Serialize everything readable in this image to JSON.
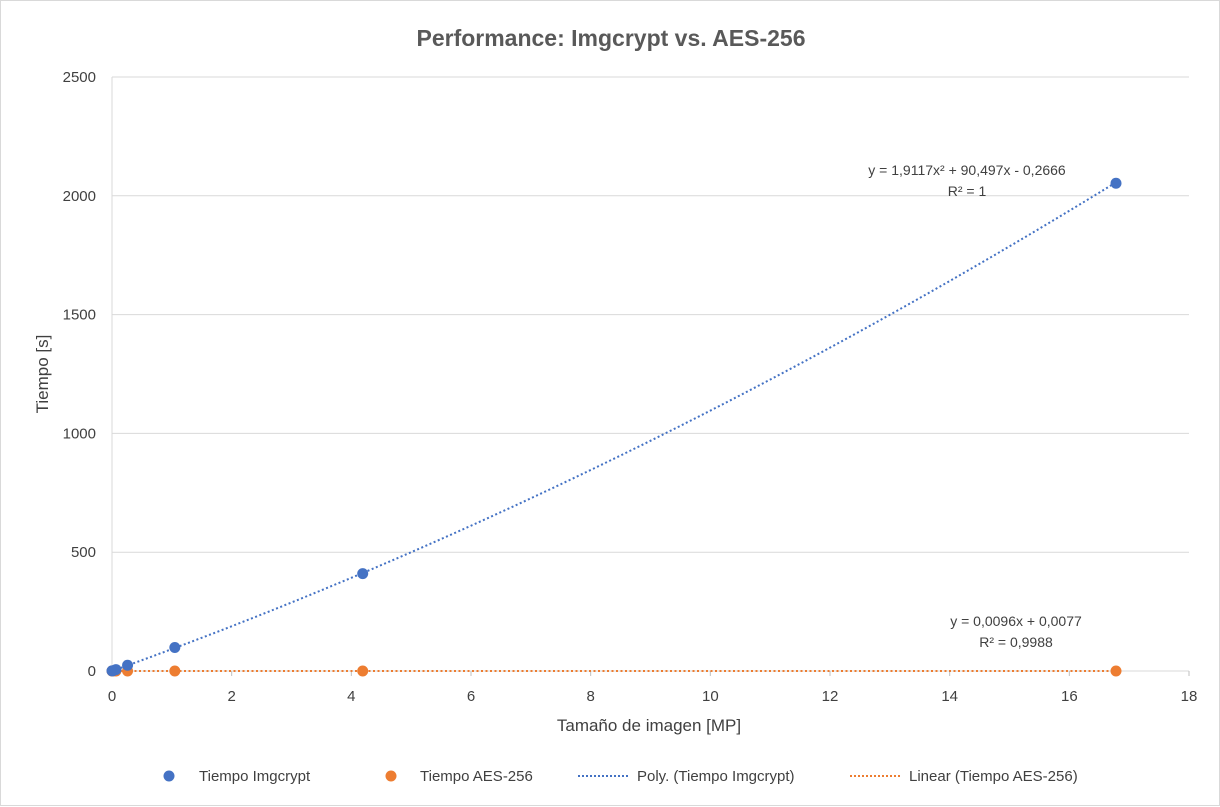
{
  "chart_data": {
    "type": "scatter",
    "title": "Performance: Imgcrypt vs. AES-256",
    "xlabel": "Tamaño de imagen [MP]",
    "ylabel": "Tiempo [s]",
    "xlim": [
      0,
      18
    ],
    "ylim": [
      0,
      2500
    ],
    "x_ticks": [
      0,
      2,
      4,
      6,
      8,
      10,
      12,
      14,
      16,
      18
    ],
    "y_ticks": [
      0,
      500,
      1000,
      1500,
      2000,
      2500
    ],
    "x_tick_labels": [
      "0",
      "2",
      "4",
      "6",
      "8",
      "10",
      "12",
      "14",
      "16",
      "18"
    ],
    "y_tick_labels": [
      "0",
      "500",
      "1000",
      "1500",
      "2000",
      "2500"
    ],
    "grid": "horizontal",
    "legend_position": "bottom",
    "series": [
      {
        "name": "Tiempo Imgcrypt",
        "color": "#4472C4",
        "points": [
          [
            0.0,
            0.5
          ],
          [
            0.016,
            1.2
          ],
          [
            0.066,
            6
          ],
          [
            0.26,
            24
          ],
          [
            1.05,
            99
          ],
          [
            4.19,
            410
          ],
          [
            16.78,
            2053
          ]
        ]
      },
      {
        "name": "Tiempo AES-256",
        "color": "#ED7D31",
        "points": [
          [
            0.0,
            0.01
          ],
          [
            0.016,
            0.02
          ],
          [
            0.066,
            0.01
          ],
          [
            0.26,
            0.01
          ],
          [
            1.05,
            0.02
          ],
          [
            4.19,
            0.05
          ],
          [
            16.78,
            0.17
          ]
        ]
      }
    ],
    "trendlines": [
      {
        "name": "Poly. (Tiempo Imgcrypt)",
        "type": "polynomial",
        "coefficients": [
          1.9117,
          90.497,
          -0.2666
        ],
        "color": "#4472C4",
        "equation": "y = 1,9117x² + 90,497x - 0,2666",
        "r2": "R² = 1"
      },
      {
        "name": "Linear (Tiempo AES-256)",
        "type": "linear",
        "coefficients": [
          0.0096,
          0.0077
        ],
        "color": "#ED7D31",
        "equation": "y = 0,0096x + 0,0077",
        "r2": "R² = 0,9988"
      }
    ]
  }
}
